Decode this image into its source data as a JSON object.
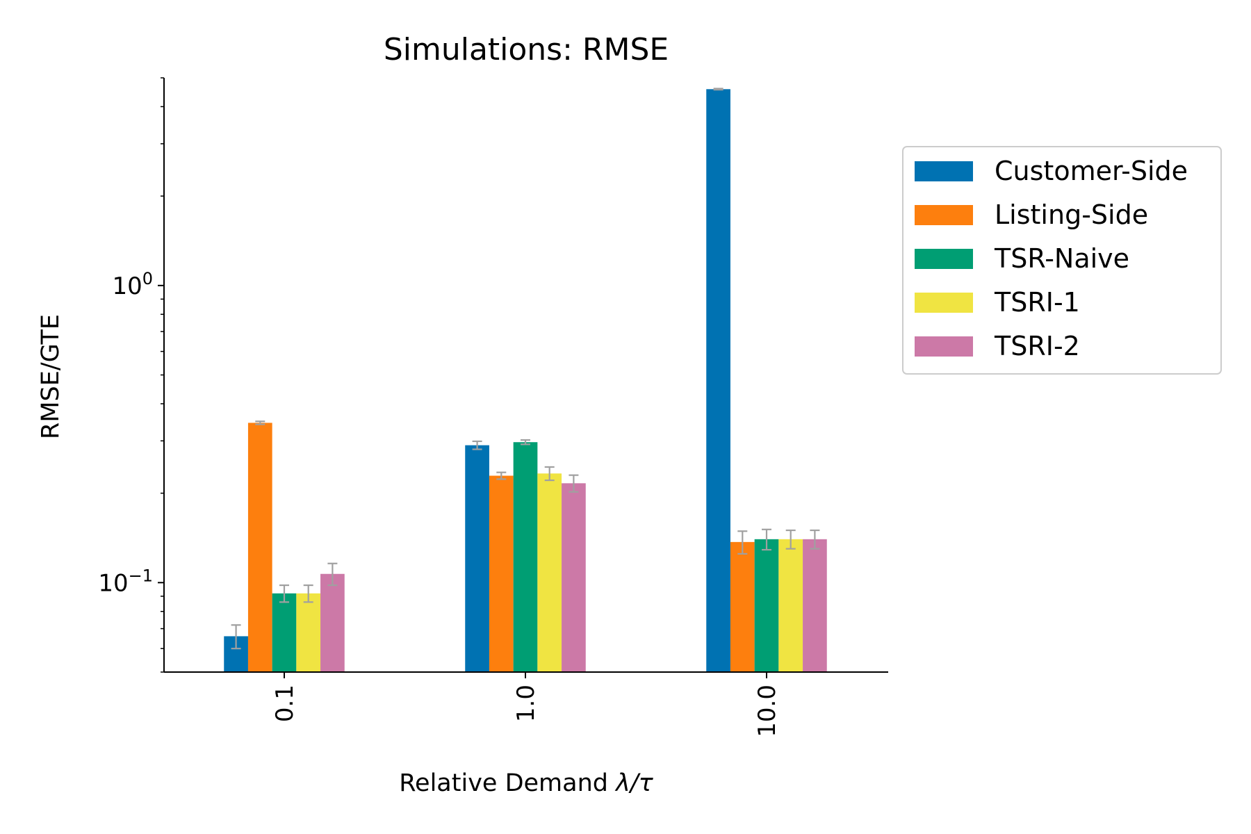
{
  "chart_data": {
    "type": "bar",
    "title": "Simulations: RMSE",
    "xlabel_prefix": "Relative Demand ",
    "xlabel_math": "λ/τ",
    "ylabel": "RMSE/GTE",
    "yscale": "log",
    "ylim": [
      0.05,
      5.0
    ],
    "y_ticks": [
      {
        "value": 0.1,
        "base": "10",
        "exp": "−1"
      },
      {
        "value": 1.0,
        "base": "10",
        "exp": "0"
      }
    ],
    "categories": [
      "0.1",
      "1.0",
      "10.0"
    ],
    "series": [
      {
        "name": "Customer-Side",
        "color": "#0072b2",
        "values": [
          0.066,
          0.29,
          4.58
        ],
        "errors": [
          0.006,
          0.009,
          0.02
        ]
      },
      {
        "name": "Listing-Side",
        "color": "#fd7f0e",
        "values": [
          0.345,
          0.229,
          0.137
        ],
        "errors": [
          0.004,
          0.006,
          0.012
        ]
      },
      {
        "name": "TSR-Naive",
        "color": "#009e73",
        "values": [
          0.092,
          0.297,
          0.14
        ],
        "errors": [
          0.006,
          0.005,
          0.011
        ]
      },
      {
        "name": "TSRI-1",
        "color": "#f0e442",
        "values": [
          0.092,
          0.233,
          0.14
        ],
        "errors": [
          0.006,
          0.012,
          0.01
        ]
      },
      {
        "name": "TSRI-2",
        "color": "#cc79a7",
        "values": [
          0.107,
          0.216,
          0.14
        ],
        "errors": [
          0.009,
          0.014,
          0.01
        ]
      }
    ],
    "errorbar_color": "#a0a0a0",
    "legend_position": "right"
  }
}
